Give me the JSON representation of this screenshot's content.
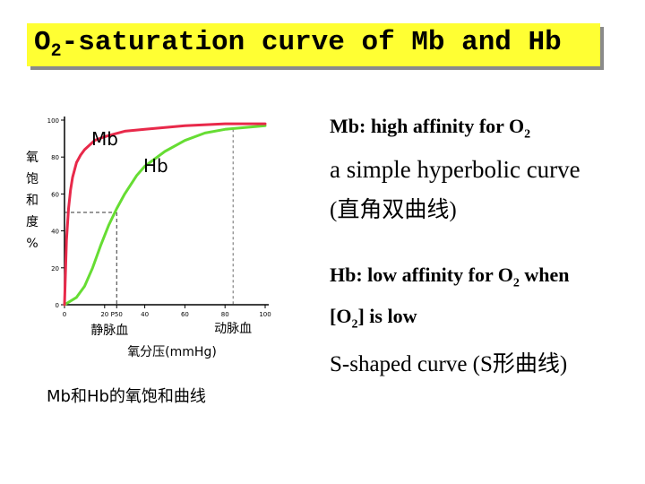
{
  "slide": {
    "title_main": "O",
    "title_sub": "2",
    "title_rest": "-saturation curve of Mb and Hb",
    "caption": "Mb和Hb的氧饱和曲线",
    "text_mb_prefix": "Mb: high affinity for O",
    "text_mb_sub": "2",
    "text_hyperbolic": "a simple hyperbolic curve",
    "text_hyperbolic_cn": "(直角双曲线)",
    "text_hb_prefix": "Hb: low affinity for O",
    "text_hb_sub": "2",
    "text_hb_suffix": " when",
    "text_lowpo2_a": "[O",
    "text_lowpo2_sub": "2",
    "text_lowpo2_b": "] is low",
    "text_sshaped": "S-shaped curve (S形曲线)"
  },
  "chart_data": {
    "type": "line",
    "ylabel": "氧饱和度%",
    "xlabel": "氧分压(mmHg)",
    "xlim": [
      0,
      100
    ],
    "ylim": [
      0,
      100
    ],
    "y_ticks": [
      "0",
      "20",
      "40",
      "60",
      "80",
      "100"
    ],
    "x_ticks": [
      "0",
      "20",
      "P50",
      "40",
      "60",
      "80",
      "100"
    ],
    "x_tick_values": [
      0,
      20,
      26,
      40,
      60,
      80,
      100
    ],
    "x_region_labels": [
      "静脉血",
      "动脉血"
    ],
    "x_region_values": [
      26,
      84
    ],
    "p50_marker": {
      "x": 26,
      "y": 50
    },
    "series": [
      {
        "name": "Mb",
        "color": "#e8294a",
        "x": [
          0,
          1,
          2,
          3,
          4,
          6,
          8,
          10,
          15,
          20,
          30,
          40,
          60,
          80,
          100
        ],
        "y": [
          0,
          35,
          52,
          62,
          69,
          77,
          81,
          84,
          89,
          91,
          94,
          95,
          97,
          98,
          98
        ]
      },
      {
        "name": "Hb",
        "color": "#66dd33",
        "x": [
          0,
          6,
          10,
          14,
          18,
          22,
          26,
          30,
          36,
          40,
          50,
          60,
          70,
          80,
          90,
          100
        ],
        "y": [
          0,
          4,
          10,
          20,
          32,
          43,
          52,
          60,
          70,
          75,
          83,
          89,
          93,
          95,
          96,
          97
        ]
      }
    ]
  }
}
